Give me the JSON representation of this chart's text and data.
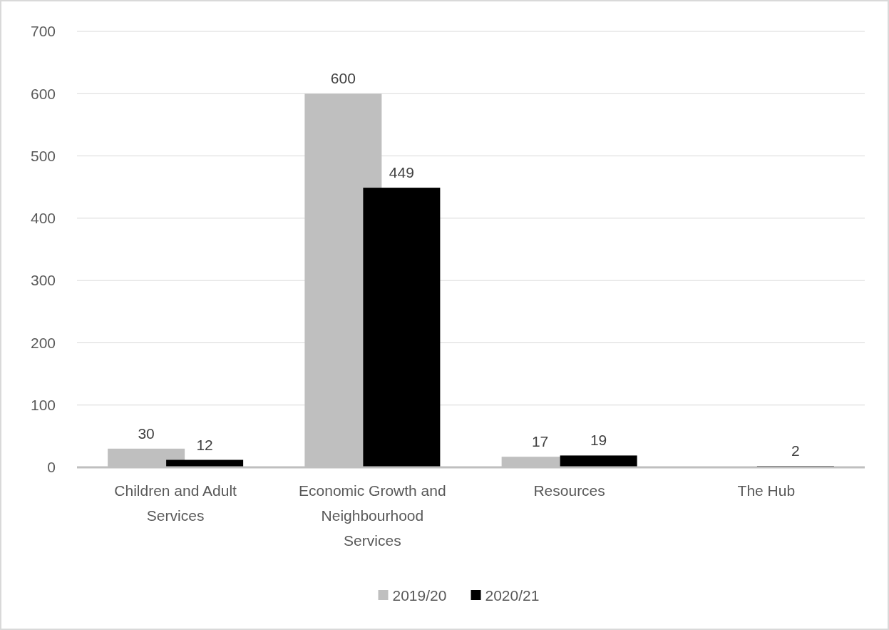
{
  "chart_data": {
    "type": "bar",
    "categories": [
      "Children and Adult Services",
      "Economic Growth and Neighbourhood Services",
      "Resources",
      "The Hub"
    ],
    "series": [
      {
        "name": "2019/20",
        "color": "#bfbfbf",
        "values": [
          30,
          600,
          17,
          null
        ],
        "value_labels": [
          "30",
          "600",
          "17",
          null
        ]
      },
      {
        "name": "2020/21",
        "color": "#000000",
        "values": [
          12,
          449,
          19,
          2
        ],
        "value_labels": [
          "12",
          "449",
          "19",
          "2"
        ]
      }
    ],
    "ylim": [
      0,
      700
    ],
    "yticks": [
      0,
      100,
      200,
      300,
      400,
      500,
      600,
      700
    ],
    "grid": "y",
    "legend": "bottom"
  }
}
